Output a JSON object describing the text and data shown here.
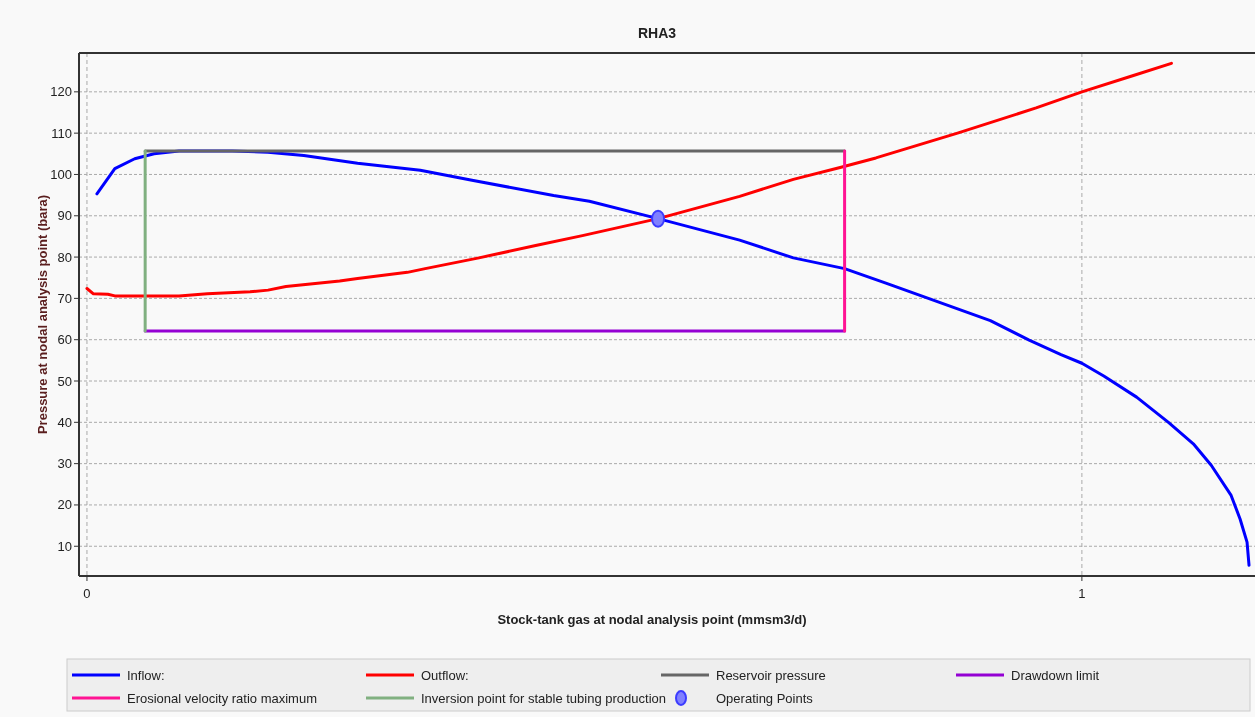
{
  "chart_data": {
    "type": "line",
    "title": "RHA3",
    "xlabel": "Stock-tank gas at nodal analysis point (mmsm3/d)",
    "ylabel": "Pressure at nodal analysis point (bara)",
    "xlim": [
      -0.008,
      1.174
    ],
    "ylim": [
      2.8,
      129.4
    ],
    "xticks": [
      0,
      1
    ],
    "yticks": [
      10,
      20,
      30,
      40,
      50,
      60,
      70,
      80,
      90,
      100,
      110,
      120
    ],
    "grid": true,
    "legend": "bottom",
    "line_style": "solid",
    "series": [
      {
        "name": "Inflow:",
        "color": "#0000ff",
        "x": [
          0.01,
          0.028,
          0.048,
          0.0675,
          0.0926,
          0.146,
          0.182,
          0.218,
          0.272,
          0.335,
          0.387,
          0.469,
          0.505,
          0.574,
          0.656,
          0.71,
          0.7615,
          0.803,
          0.908,
          0.947,
          0.979,
          1.0,
          1.022,
          1.055,
          1.087,
          1.112,
          1.13,
          1.15,
          1.159,
          1.166,
          1.168
        ],
        "values": [
          95.3,
          101.4,
          103.8,
          105.0,
          105.7,
          105.7,
          105.4,
          104.6,
          102.7,
          101.0,
          98.6,
          94.9,
          93.5,
          89.3,
          84.1,
          79.8,
          77.2,
          73.7,
          64.6,
          59.9,
          56.4,
          54.3,
          51.2,
          46.1,
          40.0,
          34.8,
          29.6,
          22.3,
          16.6,
          11.0,
          5.4
        ]
      },
      {
        "name": "Outflow:",
        "color": "#ff0000",
        "x": [
          0.0,
          0.0065,
          0.021,
          0.028,
          0.0746,
          0.0926,
          0.121,
          0.164,
          0.182,
          0.2,
          0.254,
          0.272,
          0.322,
          0.34,
          0.394,
          0.451,
          0.498,
          0.574,
          0.656,
          0.71,
          0.757,
          0.793,
          0.875,
          0.954,
          1.0,
          1.051,
          1.09
        ],
        "values": [
          72.4,
          71.1,
          71.0,
          70.6,
          70.6,
          70.6,
          71.1,
          71.6,
          72.0,
          72.9,
          74.2,
          74.8,
          76.3,
          77.2,
          79.8,
          82.8,
          85.2,
          89.3,
          94.7,
          98.8,
          101.7,
          104.0,
          110.0,
          116.1,
          120.0,
          123.9,
          126.9
        ]
      },
      {
        "name": "Reservoir pressure",
        "color": "#666666",
        "x": [
          0.0585,
          0.7615
        ],
        "values": [
          105.7,
          105.7
        ]
      },
      {
        "name": "Drawdown limit",
        "color": "#9400d3",
        "x": [
          0.0585,
          0.7615
        ],
        "values": [
          62.1,
          62.1
        ]
      },
      {
        "name": "Erosional velocity ratio maximum",
        "color": "#ff1493",
        "x": [
          0.7615,
          0.7615
        ],
        "values": [
          62.1,
          105.7
        ]
      },
      {
        "name": "Inversion point for stable tubing production",
        "color": "#80b080",
        "x": [
          0.0585,
          0.0585
        ],
        "values": [
          62.1,
          105.7
        ]
      },
      {
        "name": "Operating Points",
        "color": "#3c3cff",
        "type": "scatter",
        "marker": "circle",
        "x": [
          0.574
        ],
        "values": [
          89.3
        ]
      }
    ]
  }
}
